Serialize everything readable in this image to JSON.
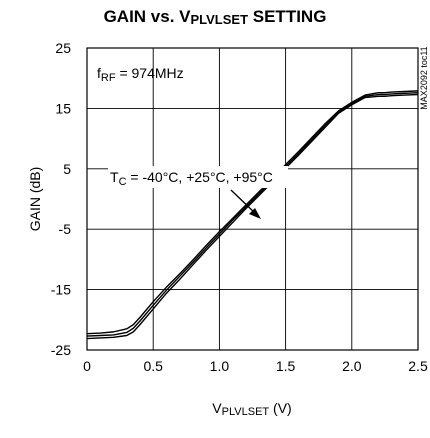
{
  "chart_data": {
    "type": "line",
    "title_main": "GAIN vs. V",
    "title_sub": "PLVLSET",
    "title_rest": " SETTING",
    "xlabel_main": "V",
    "xlabel_sub": "PLVLSET",
    "xlabel_rest": " (V)",
    "ylabel": "GAIN (dB)",
    "xlim": [
      0,
      2.5
    ],
    "ylim": [
      -25,
      25
    ],
    "x_ticks": [
      0,
      0.5,
      1.0,
      1.5,
      2.0,
      2.5
    ],
    "x_tick_labels": [
      "0",
      "0.5",
      "1.0",
      "1.5",
      "2.0",
      "2.5"
    ],
    "y_ticks": [
      -25,
      -15,
      -5,
      5,
      15,
      25
    ],
    "y_tick_labels": [
      "-25",
      "-15",
      "-5",
      "5",
      "15",
      "25"
    ],
    "grid": true,
    "annotation_freq_main": "f",
    "annotation_freq_sub": "RF",
    "annotation_freq_rest": " = 974MHz",
    "annotation_temp_main": "T",
    "annotation_temp_sub": "C",
    "annotation_temp_rest": " = -40°C, +25°C, +95°C",
    "side_label": "MAX2092 toc11",
    "series": [
      {
        "x": [
          0,
          0.1,
          0.2,
          0.3,
          0.35,
          0.4,
          0.5,
          0.6,
          0.7,
          0.8,
          0.9,
          1.0,
          1.1,
          1.2,
          1.3,
          1.4,
          1.5,
          1.6,
          1.7,
          1.8,
          1.9,
          2.0,
          2.1,
          2.2,
          2.25,
          2.3,
          2.4,
          2.5
        ],
        "y": [
          -22.3,
          -22.2,
          -22.0,
          -21.5,
          -20.8,
          -19.6,
          -17.0,
          -14.6,
          -12.4,
          -10.1,
          -7.7,
          -5.4,
          -3.2,
          -1.0,
          1.2,
          3.4,
          5.7,
          7.9,
          10.2,
          12.5,
          14.6,
          16.0,
          17.2,
          17.6,
          17.6,
          17.7,
          17.8,
          17.9
        ]
      },
      {
        "x": [
          0,
          0.1,
          0.2,
          0.3,
          0.35,
          0.4,
          0.5,
          0.6,
          0.7,
          0.8,
          0.9,
          1.0,
          1.1,
          1.2,
          1.3,
          1.4,
          1.5,
          1.6,
          1.7,
          1.8,
          1.9,
          2.0,
          2.1,
          2.2,
          2.25,
          2.3,
          2.4,
          2.5
        ],
        "y": [
          -22.7,
          -22.6,
          -22.5,
          -22.1,
          -21.4,
          -20.2,
          -17.6,
          -15.1,
          -12.8,
          -10.5,
          -8.1,
          -5.8,
          -3.5,
          -1.3,
          0.9,
          3.1,
          5.4,
          7.6,
          9.9,
          12.2,
          14.4,
          15.8,
          17.0,
          17.3,
          17.3,
          17.4,
          17.5,
          17.6
        ]
      },
      {
        "x": [
          0,
          0.1,
          0.2,
          0.3,
          0.35,
          0.4,
          0.5,
          0.6,
          0.7,
          0.8,
          0.9,
          1.0,
          1.1,
          1.2,
          1.3,
          1.4,
          1.5,
          1.6,
          1.7,
          1.8,
          1.9,
          2.0,
          2.1,
          2.2,
          2.25,
          2.3,
          2.4,
          2.5
        ],
        "y": [
          -23.1,
          -23.0,
          -22.9,
          -22.6,
          -22.0,
          -20.8,
          -18.2,
          -15.6,
          -13.3,
          -10.9,
          -8.5,
          -6.2,
          -3.9,
          -1.6,
          0.6,
          2.8,
          5.1,
          7.3,
          9.6,
          11.9,
          14.2,
          15.6,
          16.8,
          17.0,
          17.0,
          17.1,
          17.2,
          17.3
        ]
      }
    ]
  }
}
